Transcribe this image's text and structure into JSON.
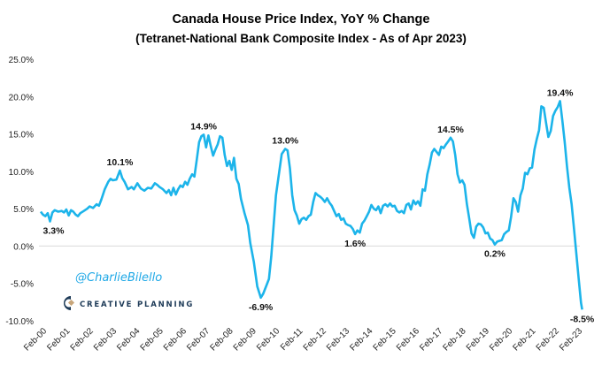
{
  "chart_data": {
    "type": "line",
    "title": "Canada House Price Index, YoY % Change",
    "subtitle": "(Tetranet-National  Bank Composite Index - As of Apr 2023)",
    "xlabel": "",
    "ylabel": "",
    "ylim": [
      -10,
      25
    ],
    "yticks": [
      25,
      20,
      15,
      10,
      5,
      0,
      -5,
      -10
    ],
    "ytick_labels": [
      "25.0%",
      "20.0%",
      "15.0%",
      "10.0%",
      "5.0%",
      "0.0%",
      "-5.0%",
      "-10.0%"
    ],
    "xtick_labels": [
      "Feb-00",
      "Feb-01",
      "Feb-02",
      "Feb-03",
      "Feb-04",
      "Feb-05",
      "Feb-06",
      "Feb-07",
      "Feb-08",
      "Feb-09",
      "Feb-10",
      "Feb-11",
      "Feb-12",
      "Feb-13",
      "Feb-14",
      "Feb-15",
      "Feb-16",
      "Feb-17",
      "Feb-18",
      "Feb-19",
      "Feb-20",
      "Feb-21",
      "Feb-22",
      "Feb-23"
    ],
    "xlim": [
      2000.0,
      2023.25
    ],
    "grid": "zero-line only",
    "legend": "none",
    "series": [
      {
        "name": "YoY % Change",
        "color": "#1cb4ea",
        "points": [
          [
            2000.0,
            4.6
          ],
          [
            2000.1,
            4.2
          ],
          [
            2000.2,
            4.0
          ],
          [
            2000.3,
            4.4
          ],
          [
            2000.4,
            3.3
          ],
          [
            2000.5,
            4.5
          ],
          [
            2000.6,
            4.8
          ],
          [
            2000.75,
            4.6
          ],
          [
            2000.9,
            4.7
          ],
          [
            2001.0,
            4.5
          ],
          [
            2001.1,
            4.9
          ],
          [
            2001.2,
            4.1
          ],
          [
            2001.3,
            4.8
          ],
          [
            2001.4,
            4.6
          ],
          [
            2001.5,
            4.2
          ],
          [
            2001.6,
            4.0
          ],
          [
            2001.7,
            4.4
          ],
          [
            2001.85,
            4.7
          ],
          [
            2002.0,
            5.0
          ],
          [
            2002.1,
            5.3
          ],
          [
            2002.25,
            5.1
          ],
          [
            2002.4,
            5.6
          ],
          [
            2002.5,
            5.4
          ],
          [
            2002.6,
            6.2
          ],
          [
            2002.75,
            7.6
          ],
          [
            2002.9,
            8.6
          ],
          [
            2003.0,
            9.0
          ],
          [
            2003.1,
            8.8
          ],
          [
            2003.25,
            8.9
          ],
          [
            2003.4,
            10.1
          ],
          [
            2003.5,
            9.1
          ],
          [
            2003.6,
            8.6
          ],
          [
            2003.75,
            7.6
          ],
          [
            2003.9,
            7.9
          ],
          [
            2004.0,
            7.6
          ],
          [
            2004.15,
            8.4
          ],
          [
            2004.3,
            7.7
          ],
          [
            2004.45,
            7.4
          ],
          [
            2004.6,
            7.8
          ],
          [
            2004.75,
            7.7
          ],
          [
            2004.9,
            8.4
          ],
          [
            2005.0,
            8.2
          ],
          [
            2005.1,
            7.9
          ],
          [
            2005.25,
            7.6
          ],
          [
            2005.4,
            7.1
          ],
          [
            2005.5,
            7.5
          ],
          [
            2005.6,
            6.8
          ],
          [
            2005.7,
            7.8
          ],
          [
            2005.8,
            6.9
          ],
          [
            2005.9,
            7.6
          ],
          [
            2006.0,
            8.1
          ],
          [
            2006.1,
            7.9
          ],
          [
            2006.2,
            8.6
          ],
          [
            2006.3,
            8.2
          ],
          [
            2006.4,
            9.0
          ],
          [
            2006.5,
            9.6
          ],
          [
            2006.6,
            9.3
          ],
          [
            2006.7,
            11.5
          ],
          [
            2006.8,
            13.9
          ],
          [
            2006.9,
            14.7
          ],
          [
            2007.0,
            14.9
          ],
          [
            2007.1,
            13.2
          ],
          [
            2007.2,
            14.8
          ],
          [
            2007.3,
            13.4
          ],
          [
            2007.4,
            12.1
          ],
          [
            2007.5,
            12.9
          ],
          [
            2007.6,
            13.6
          ],
          [
            2007.7,
            14.7
          ],
          [
            2007.8,
            14.5
          ],
          [
            2007.9,
            12.2
          ],
          [
            2008.0,
            10.7
          ],
          [
            2008.1,
            11.4
          ],
          [
            2008.2,
            10.2
          ],
          [
            2008.3,
            11.8
          ],
          [
            2008.4,
            9.0
          ],
          [
            2008.5,
            8.3
          ],
          [
            2008.6,
            6.3
          ],
          [
            2008.75,
            4.4
          ],
          [
            2008.9,
            2.8
          ],
          [
            2009.0,
            0.4
          ],
          [
            2009.15,
            -2.1
          ],
          [
            2009.3,
            -5.4
          ],
          [
            2009.45,
            -6.9
          ],
          [
            2009.55,
            -6.4
          ],
          [
            2009.7,
            -5.2
          ],
          [
            2009.8,
            -4.4
          ],
          [
            2009.9,
            -1.4
          ],
          [
            2010.0,
            2.6
          ],
          [
            2010.1,
            6.8
          ],
          [
            2010.2,
            9.0
          ],
          [
            2010.35,
            12.3
          ],
          [
            2010.5,
            13.0
          ],
          [
            2010.6,
            12.8
          ],
          [
            2010.7,
            10.4
          ],
          [
            2010.8,
            6.8
          ],
          [
            2010.9,
            4.8
          ],
          [
            2011.0,
            4.1
          ],
          [
            2011.1,
            3.0
          ],
          [
            2011.2,
            3.6
          ],
          [
            2011.3,
            3.8
          ],
          [
            2011.4,
            3.5
          ],
          [
            2011.5,
            4.0
          ],
          [
            2011.6,
            4.2
          ],
          [
            2011.7,
            5.9
          ],
          [
            2011.8,
            7.1
          ],
          [
            2011.9,
            6.8
          ],
          [
            2012.0,
            6.6
          ],
          [
            2012.1,
            6.3
          ],
          [
            2012.2,
            5.9
          ],
          [
            2012.3,
            6.4
          ],
          [
            2012.4,
            5.8
          ],
          [
            2012.5,
            5.4
          ],
          [
            2012.6,
            4.7
          ],
          [
            2012.7,
            4.0
          ],
          [
            2012.8,
            4.3
          ],
          [
            2012.9,
            3.5
          ],
          [
            2013.0,
            3.7
          ],
          [
            2013.1,
            3.0
          ],
          [
            2013.2,
            2.8
          ],
          [
            2013.3,
            2.7
          ],
          [
            2013.4,
            2.3
          ],
          [
            2013.5,
            1.6
          ],
          [
            2013.6,
            2.1
          ],
          [
            2013.7,
            1.8
          ],
          [
            2013.8,
            3.0
          ],
          [
            2013.9,
            3.4
          ],
          [
            2014.0,
            4.0
          ],
          [
            2014.1,
            4.6
          ],
          [
            2014.2,
            5.5
          ],
          [
            2014.3,
            5.0
          ],
          [
            2014.4,
            4.8
          ],
          [
            2014.5,
            5.3
          ],
          [
            2014.6,
            4.4
          ],
          [
            2014.7,
            5.4
          ],
          [
            2014.8,
            5.6
          ],
          [
            2014.9,
            5.3
          ],
          [
            2015.0,
            5.7
          ],
          [
            2015.1,
            5.3
          ],
          [
            2015.2,
            5.4
          ],
          [
            2015.3,
            4.7
          ],
          [
            2015.4,
            4.5
          ],
          [
            2015.5,
            4.7
          ],
          [
            2015.6,
            4.4
          ],
          [
            2015.7,
            5.5
          ],
          [
            2015.8,
            5.7
          ],
          [
            2015.9,
            4.9
          ],
          [
            2016.0,
            6.1
          ],
          [
            2016.1,
            5.6
          ],
          [
            2016.2,
            6.0
          ],
          [
            2016.3,
            5.4
          ],
          [
            2016.4,
            7.6
          ],
          [
            2016.5,
            7.4
          ],
          [
            2016.6,
            9.6
          ],
          [
            2016.7,
            10.9
          ],
          [
            2016.8,
            12.5
          ],
          [
            2016.9,
            13.0
          ],
          [
            2017.0,
            12.6
          ],
          [
            2017.1,
            12.2
          ],
          [
            2017.2,
            13.3
          ],
          [
            2017.3,
            13.1
          ],
          [
            2017.4,
            13.6
          ],
          [
            2017.5,
            14.0
          ],
          [
            2017.6,
            14.5
          ],
          [
            2017.7,
            14.0
          ],
          [
            2017.8,
            12.2
          ],
          [
            2017.9,
            9.6
          ],
          [
            2018.0,
            8.5
          ],
          [
            2018.1,
            8.8
          ],
          [
            2018.2,
            8.2
          ],
          [
            2018.3,
            5.6
          ],
          [
            2018.4,
            3.7
          ],
          [
            2018.5,
            1.7
          ],
          [
            2018.6,
            1.1
          ],
          [
            2018.7,
            2.6
          ],
          [
            2018.8,
            3.0
          ],
          [
            2018.9,
            2.9
          ],
          [
            2019.0,
            2.5
          ],
          [
            2019.1,
            1.7
          ],
          [
            2019.2,
            1.8
          ],
          [
            2019.3,
            1.0
          ],
          [
            2019.4,
            0.8
          ],
          [
            2019.5,
            0.2
          ],
          [
            2019.6,
            0.6
          ],
          [
            2019.7,
            0.7
          ],
          [
            2019.8,
            0.8
          ],
          [
            2019.9,
            1.6
          ],
          [
            2020.0,
            1.9
          ],
          [
            2020.1,
            2.1
          ],
          [
            2020.2,
            3.9
          ],
          [
            2020.3,
            6.4
          ],
          [
            2020.4,
            5.9
          ],
          [
            2020.5,
            4.6
          ],
          [
            2020.6,
            6.8
          ],
          [
            2020.7,
            7.7
          ],
          [
            2020.8,
            9.8
          ],
          [
            2020.9,
            9.6
          ],
          [
            2021.0,
            10.4
          ],
          [
            2021.1,
            10.5
          ],
          [
            2021.2,
            12.9
          ],
          [
            2021.3,
            14.3
          ],
          [
            2021.4,
            15.5
          ],
          [
            2021.5,
            18.7
          ],
          [
            2021.6,
            18.5
          ],
          [
            2021.7,
            16.5
          ],
          [
            2021.8,
            14.6
          ],
          [
            2021.9,
            15.4
          ],
          [
            2022.0,
            17.4
          ],
          [
            2022.1,
            18.1
          ],
          [
            2022.2,
            18.6
          ],
          [
            2022.3,
            19.4
          ],
          [
            2022.4,
            16.8
          ],
          [
            2022.5,
            14.0
          ],
          [
            2022.6,
            10.6
          ],
          [
            2022.7,
            7.8
          ],
          [
            2022.8,
            5.6
          ],
          [
            2022.9,
            2.3
          ],
          [
            2023.0,
            -1.0
          ],
          [
            2023.1,
            -4.3
          ],
          [
            2023.2,
            -7.6
          ],
          [
            2023.25,
            -8.5
          ]
        ]
      }
    ],
    "annotations": [
      {
        "x": 2000.4,
        "y": 3.3,
        "text": "3.3%",
        "pos": "below"
      },
      {
        "x": 2003.4,
        "y": 10.1,
        "text": "10.1%",
        "pos": "above"
      },
      {
        "x": 2007.0,
        "y": 14.9,
        "text": "14.9%",
        "pos": "above"
      },
      {
        "x": 2009.45,
        "y": -6.9,
        "text": "-6.9%",
        "pos": "below"
      },
      {
        "x": 2010.5,
        "y": 13.0,
        "text": "13.0%",
        "pos": "above"
      },
      {
        "x": 2013.5,
        "y": 1.6,
        "text": "1.6%",
        "pos": "below"
      },
      {
        "x": 2017.6,
        "y": 14.5,
        "text": "14.5%",
        "pos": "above"
      },
      {
        "x": 2019.5,
        "y": 0.2,
        "text": "0.2%",
        "pos": "below"
      },
      {
        "x": 2022.3,
        "y": 19.4,
        "text": "19.4%",
        "pos": "above"
      },
      {
        "x": 2023.25,
        "y": -8.5,
        "text": "-8.5%",
        "pos": "below"
      }
    ]
  },
  "watermark": {
    "handle": "@CharlieBilello",
    "brand": "CREATIVE PLANNING",
    "brand_mark": "®"
  },
  "colors": {
    "line": "#1cb4ea",
    "zero_line": "#d9d9d9",
    "handle": "#1fa8e6",
    "brand": "#1d3a57",
    "brand_accent": "#c8a67a"
  }
}
